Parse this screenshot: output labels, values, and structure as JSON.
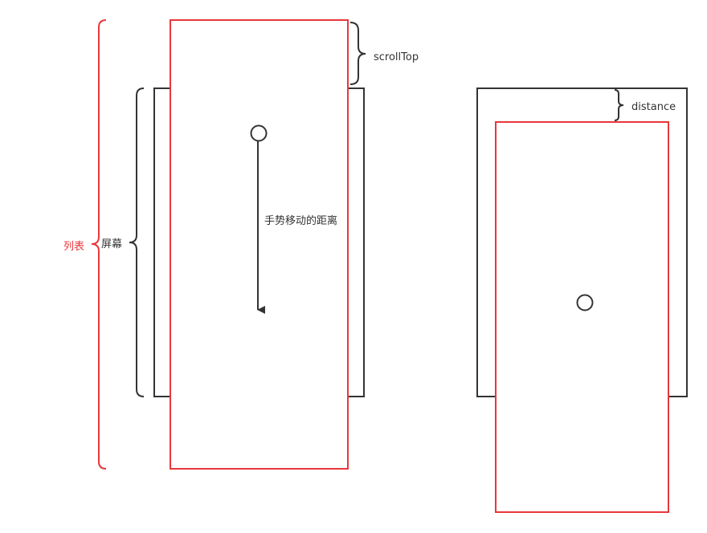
{
  "labels": {
    "list": "列表",
    "screen": "屏幕",
    "scroll_top": "scrollTop",
    "gesture_distance": "手势移动的距离",
    "distance": "distance"
  },
  "colors": {
    "red": "#e8373c",
    "dark": "#333333"
  }
}
